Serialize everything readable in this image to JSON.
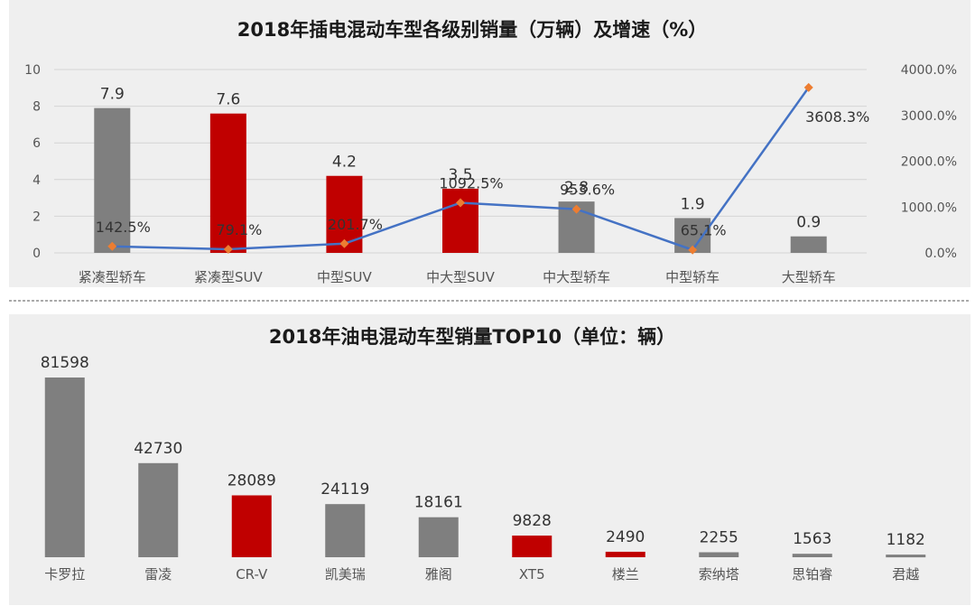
{
  "chart_data": [
    {
      "type": "bar",
      "title": "2018年插电混动车型各级别销量（万辆）及增速（%）",
      "categories": [
        "紧凑型轿车",
        "紧凑型SUV",
        "中型SUV",
        "中大型SUV",
        "中大型轿车",
        "中型轿车",
        "大型轿车"
      ],
      "series": [
        {
          "type": "bar",
          "values": [
            7.9,
            7.6,
            4.2,
            3.5,
            2.8,
            1.9,
            0.9
          ],
          "value_labels": [
            "7.9",
            "7.6",
            "4.2",
            "3.5",
            "2.8",
            "1.9",
            "0.9"
          ],
          "colors": [
            "#7f7f7f",
            "#c00000",
            "#c00000",
            "#c00000",
            "#7f7f7f",
            "#7f7f7f",
            "#7f7f7f"
          ]
        },
        {
          "type": "line",
          "axis": "right",
          "values": [
            142.5,
            79.1,
            201.7,
            1092.5,
            953.6,
            65.1,
            3608.3
          ],
          "value_labels": [
            "142.5%",
            "79.1%",
            "201.7%",
            "1092.5%",
            "953.6%",
            "65.1%",
            "3608.3%"
          ],
          "color": "#4472c4",
          "marker_color": "#ed7d31"
        }
      ],
      "y_left": {
        "range": [
          0,
          10
        ],
        "ticks": [
          "0",
          "2",
          "4",
          "6",
          "8",
          "10"
        ]
      },
      "y_right": {
        "range": [
          0,
          4000
        ],
        "ticks": [
          "0.0%",
          "1000.0%",
          "2000.0%",
          "3000.0%",
          "4000.0%"
        ]
      },
      "grid": true,
      "legend": "none"
    },
    {
      "type": "bar",
      "title": "2018年油电混动车型销量TOP10（单位：辆）",
      "categories": [
        "卡罗拉",
        "雷凌",
        "CR-V",
        "凯美瑞",
        "雅阁",
        "XT5",
        "楼兰",
        "索纳塔",
        "思铂睿",
        "君越"
      ],
      "values": [
        81598,
        42730,
        28089,
        24119,
        18161,
        9828,
        2490,
        2255,
        1563,
        1182
      ],
      "value_labels": [
        "81598",
        "42730",
        "28089",
        "24119",
        "18161",
        "9828",
        "2490",
        "2255",
        "1563",
        "1182"
      ],
      "colors": [
        "#7f7f7f",
        "#7f7f7f",
        "#c00000",
        "#7f7f7f",
        "#7f7f7f",
        "#c00000",
        "#c00000",
        "#7f7f7f",
        "#7f7f7f",
        "#7f7f7f"
      ],
      "grid": false,
      "legend": "none"
    }
  ]
}
